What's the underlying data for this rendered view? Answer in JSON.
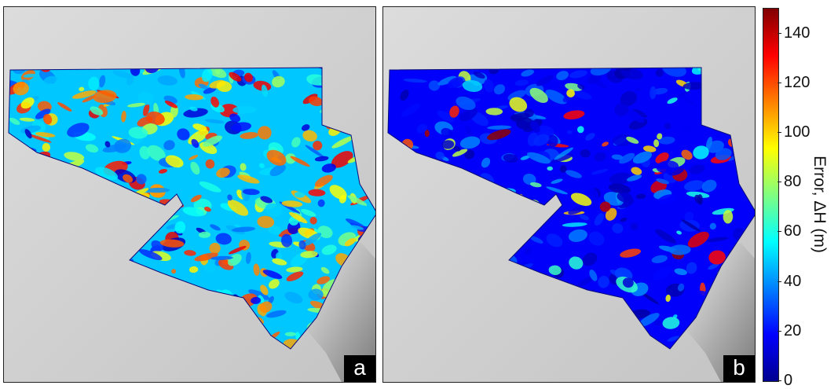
{
  "panels": [
    {
      "id": "a",
      "label": "a",
      "map_scheme": "high-error"
    },
    {
      "id": "b",
      "label": "b",
      "map_scheme": "low-error"
    }
  ],
  "colorbar": {
    "label": "Error, ΔH (m)",
    "min": 0,
    "max": 150,
    "ticks": [
      "140",
      "120",
      "100",
      "80",
      "60",
      "40",
      "20",
      "0"
    ],
    "tick_values": [
      140,
      120,
      100,
      80,
      60,
      40,
      20,
      0
    ],
    "colormap": "jet",
    "colors": [
      "#00008f",
      "#0000ff",
      "#0080ff",
      "#00ffff",
      "#80ff80",
      "#ffff00",
      "#ff8000",
      "#ff0000",
      "#800000"
    ]
  },
  "background": {
    "terrain": "grey shaded relief",
    "color": "#cfcfcf"
  }
}
